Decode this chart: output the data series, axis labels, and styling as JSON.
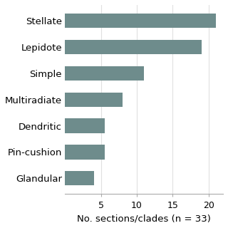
{
  "categories": [
    "Stellate",
    "Lepidote",
    "Simple",
    "Multiradiate",
    "Dendritic",
    "Pin-cushion",
    "Glandular"
  ],
  "values": [
    21,
    19,
    11,
    8,
    5.5,
    5.5,
    4
  ],
  "bar_color": "#6e8c8c",
  "xlabel": "No. sections/clades (n = 33)",
  "xlim": [
    0,
    22
  ],
  "xticks": [
    5,
    10,
    15,
    20
  ],
  "background_color": "#ffffff",
  "bar_height": 0.55,
  "label_fontsize": 9.5,
  "tick_fontsize": 9,
  "xlabel_fontsize": 9.5
}
